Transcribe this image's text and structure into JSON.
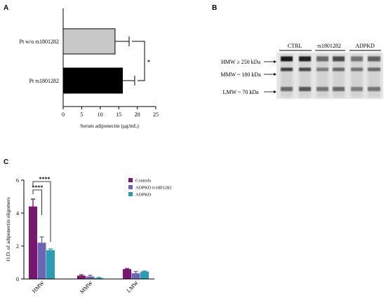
{
  "panels": {
    "a": "A",
    "b": "B",
    "c": "C"
  },
  "chart_data": [
    {
      "type": "bar",
      "orientation": "horizontal",
      "panel": "A",
      "categories": [
        "Pt w/o rs1801282",
        "Pt rs1801282"
      ],
      "values": [
        14,
        16
      ],
      "errors": [
        3.8,
        3.3
      ],
      "colors": [
        "#c8c8c8",
        "#000000"
      ],
      "xlabel": "Serum adiponectin (μg/mL)",
      "xlim": [
        0,
        25
      ],
      "xticks": [
        0,
        5,
        10,
        15,
        20,
        25
      ],
      "significance": "*"
    },
    {
      "type": "bar",
      "panel": "C",
      "categories": [
        "HMW",
        "MMW",
        "LMW"
      ],
      "series": [
        {
          "name": "Controls",
          "values": [
            4.4,
            0.2,
            0.6
          ],
          "errors": [
            0.45,
            0.05,
            0.03
          ],
          "color": "#7b1670"
        },
        {
          "name": "ADPKD rs1801282",
          "values": [
            2.2,
            0.15,
            0.35
          ],
          "errors": [
            0.35,
            0.08,
            0.1
          ],
          "color": "#6a66b4"
        },
        {
          "name": "ADPKD",
          "values": [
            1.75,
            0.06,
            0.45
          ],
          "errors": [
            0.07,
            0.03,
            0.03
          ],
          "color": "#2a9db0"
        }
      ],
      "ylabel": "O.D. of adiponectin oligomers",
      "ylim": [
        0,
        6
      ],
      "yticks": [
        0,
        2,
        4,
        6
      ],
      "significance": [
        "****",
        "****"
      ],
      "legend_position": "top-right"
    }
  ],
  "blot": {
    "groups": [
      "CTRL",
      "rs1801282",
      "ADPKD"
    ],
    "bands": [
      "HMW ≥ 250 kDa",
      "MMW ~ 180 kDa",
      "LMW ~ 70 kDa"
    ]
  }
}
